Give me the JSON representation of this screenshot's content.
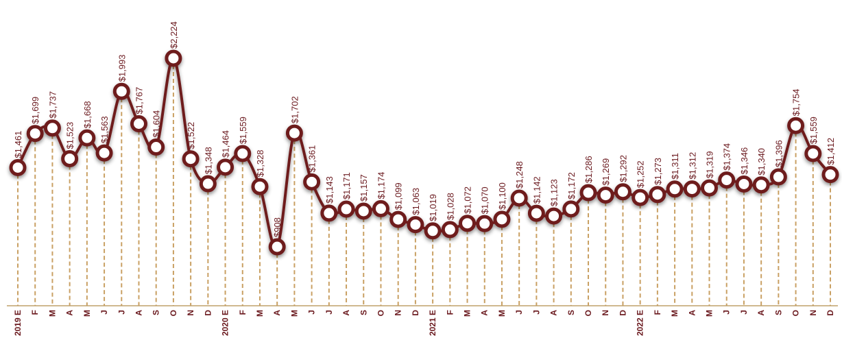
{
  "chart_data": {
    "type": "line",
    "title": "",
    "xlabel": "",
    "ylabel": "",
    "grid": false,
    "legend": "none",
    "colors": {
      "line": "#6e1c1f",
      "marker_fill": "#ffffff",
      "drop_line": "#c9a063",
      "baseline": "#bfa06a",
      "text": "#6b1a1f"
    },
    "value_labels": [
      "$1,461",
      "$1,699",
      "$1,737",
      "$1,523",
      "$1,668",
      "$1,563",
      "$1,993",
      "$1,767",
      "$1,604",
      "$2,224",
      "$1,522",
      "$1,348",
      "$1,464",
      "$1,559",
      "$1,328",
      "$908",
      "$1,702",
      "$1,361",
      "$1,143",
      "$1,171",
      "$1,157",
      "$1,174",
      "$1,099",
      "$1,063",
      "$1,019",
      "$1,028",
      "$1,072",
      "$1,070",
      "$1,100",
      "$1,248",
      "$1,142",
      "$1,123",
      "$1,172",
      "$1,286",
      "$1,269",
      "$1,292",
      "$1,252",
      "$1,273",
      "$1,311",
      "$1,312",
      "$1,319",
      "$1,374",
      "$1,346",
      "$1,340",
      "$1,396",
      "$1,754",
      "$1,559",
      "$1,412"
    ],
    "categories": [
      "2019 E",
      "F",
      "M",
      "A",
      "M",
      "J",
      "J",
      "A",
      "S",
      "O",
      "N",
      "D",
      "2020 E",
      "F",
      "M",
      "A",
      "M",
      "J",
      "J",
      "A",
      "S",
      "O",
      "N",
      "D",
      "2021 E",
      "F",
      "M",
      "A",
      "M",
      "J",
      "J",
      "A",
      "S",
      "O",
      "N",
      "D",
      "2022 E",
      "F",
      "M",
      "A",
      "M",
      "J",
      "J",
      "A",
      "S",
      "O",
      "N",
      "D"
    ],
    "values": [
      1461,
      1699,
      1737,
      1523,
      1668,
      1563,
      1993,
      1767,
      1604,
      2224,
      1522,
      1348,
      1464,
      1559,
      1328,
      908,
      1702,
      1361,
      1143,
      1171,
      1157,
      1174,
      1099,
      1063,
      1019,
      1028,
      1072,
      1070,
      1100,
      1248,
      1142,
      1123,
      1172,
      1286,
      1269,
      1292,
      1252,
      1273,
      1311,
      1312,
      1319,
      1374,
      1346,
      1340,
      1396,
      1754,
      1559,
      1412
    ]
  }
}
